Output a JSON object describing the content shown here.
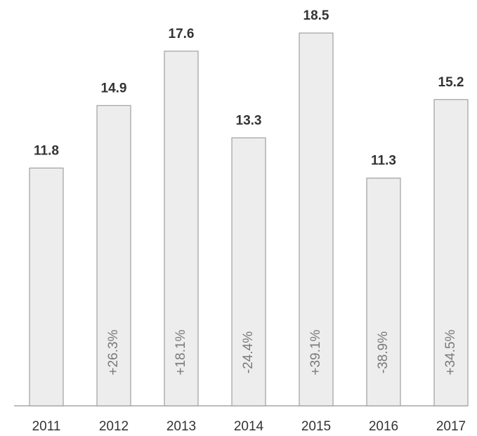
{
  "chart_data": {
    "type": "bar",
    "categories": [
      "2011",
      "2012",
      "2013",
      "2014",
      "2015",
      "2016",
      "2017"
    ],
    "values": [
      11.8,
      14.9,
      17.6,
      13.3,
      18.5,
      11.3,
      15.2
    ],
    "annotations": [
      null,
      "+26.3%",
      "+18.1%",
      "-24.4%",
      "+39.1%",
      "-38.9%",
      "+34.5%"
    ],
    "color": "#ededed"
  }
}
